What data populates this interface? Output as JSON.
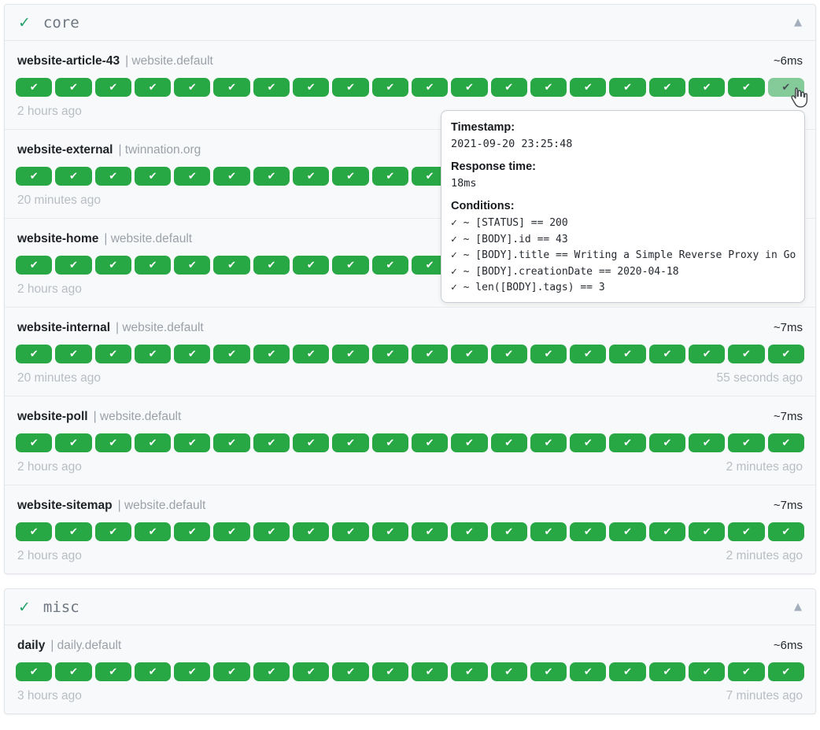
{
  "colors": {
    "badge_green": "#28a745",
    "badge_green_hover": "#84cb99",
    "group_check_green": "#23a269",
    "card_background": "#f8f9fa",
    "muted_text": "#b8bdc4"
  },
  "icons": {
    "badge_check": "✔",
    "group_check": "✓",
    "collapse_triangle": "▲"
  },
  "tooltip": {
    "timestamp_label": "Timestamp:",
    "timestamp_value": "2021-09-20 23:25:48",
    "response_time_label": "Response time:",
    "response_time_value": "18ms",
    "conditions_label": "Conditions:",
    "conditions": [
      "✓ ~ [STATUS] == 200",
      "✓ ~ [BODY].id == 43",
      "✓ ~ [BODY].title == Writing a Simple Reverse Proxy in Go",
      "✓ ~ [BODY].creationDate == 2020-04-18",
      "✓ ~ len([BODY].tags) == 3"
    ]
  },
  "groups": [
    {
      "name": "core",
      "services": [
        {
          "name": "website-article-43",
          "meta": "| website.default",
          "response_time": "~6ms",
          "badge_count": 20,
          "footer_left": "2 hours ago",
          "footer_right": "",
          "last_badge_hovered": true
        },
        {
          "name": "website-external",
          "meta": "| twinnation.org",
          "response_time": "",
          "badge_count": 20,
          "footer_left": "20 minutes ago",
          "footer_right": "",
          "last_badge_hovered": false
        },
        {
          "name": "website-home",
          "meta": "| website.default",
          "response_time": "",
          "badge_count": 20,
          "footer_left": "2 hours ago",
          "footer_right": "",
          "last_badge_hovered": false
        },
        {
          "name": "website-internal",
          "meta": "| website.default",
          "response_time": "~7ms",
          "badge_count": 20,
          "footer_left": "20 minutes ago",
          "footer_right": "55 seconds ago",
          "last_badge_hovered": false
        },
        {
          "name": "website-poll",
          "meta": "| website.default",
          "response_time": "~7ms",
          "badge_count": 20,
          "footer_left": "2 hours ago",
          "footer_right": "2 minutes ago",
          "last_badge_hovered": false
        },
        {
          "name": "website-sitemap",
          "meta": "| website.default",
          "response_time": "~7ms",
          "badge_count": 20,
          "footer_left": "2 hours ago",
          "footer_right": "2 minutes ago",
          "last_badge_hovered": false
        }
      ]
    },
    {
      "name": "misc",
      "services": [
        {
          "name": "daily",
          "meta": "| daily.default",
          "response_time": "~6ms",
          "badge_count": 20,
          "footer_left": "3 hours ago",
          "footer_right": "7 minutes ago",
          "last_badge_hovered": false
        }
      ]
    }
  ]
}
